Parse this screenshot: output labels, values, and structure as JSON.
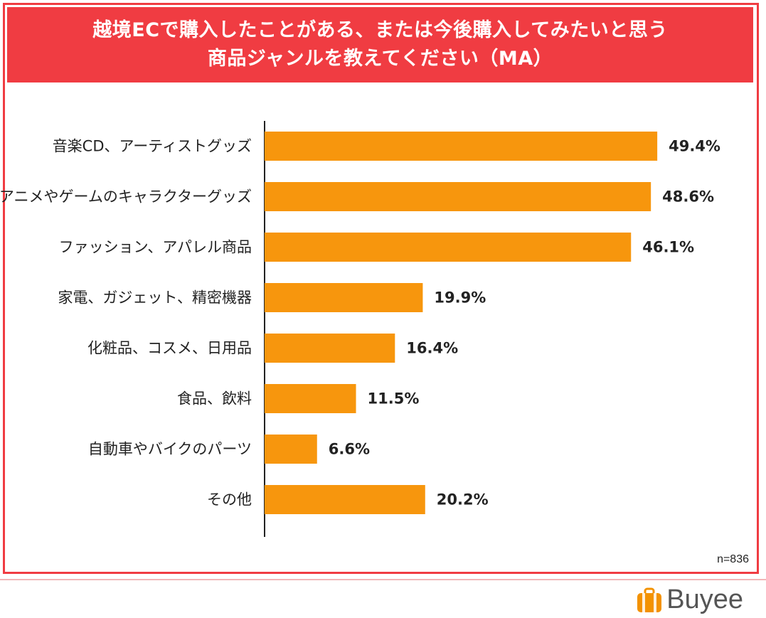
{
  "title": "越境ECで購入したことがある、または今後購入してみたいと思う\n商品ジャンルを教えてください（MA）",
  "note": "n=836",
  "brand": {
    "name": "Buyee",
    "accent_color": "#f03c42",
    "logo_color": "#f39200"
  },
  "chart_data": {
    "type": "bar",
    "orientation": "horizontal",
    "categories": [
      "音楽CD、アーティストグッズ",
      "アニメやゲームのキャラクターグッズ",
      "ファッション、アパレル商品",
      "家電、ガジェット、精密機器",
      "化粧品、コスメ、日用品",
      "食品、飲料",
      "自動車やバイクのパーツ",
      "その他"
    ],
    "values": [
      49.4,
      48.6,
      46.1,
      19.9,
      16.4,
      11.5,
      6.6,
      20.2
    ],
    "value_labels": [
      "49.4%",
      "48.6%",
      "46.1%",
      "19.9%",
      "16.4%",
      "11.5%",
      "6.6%",
      "20.2%"
    ],
    "unit": "%",
    "xlim": [
      0,
      59.5
    ],
    "bar_color": "#f7960d",
    "grid": false,
    "legend": "none"
  }
}
